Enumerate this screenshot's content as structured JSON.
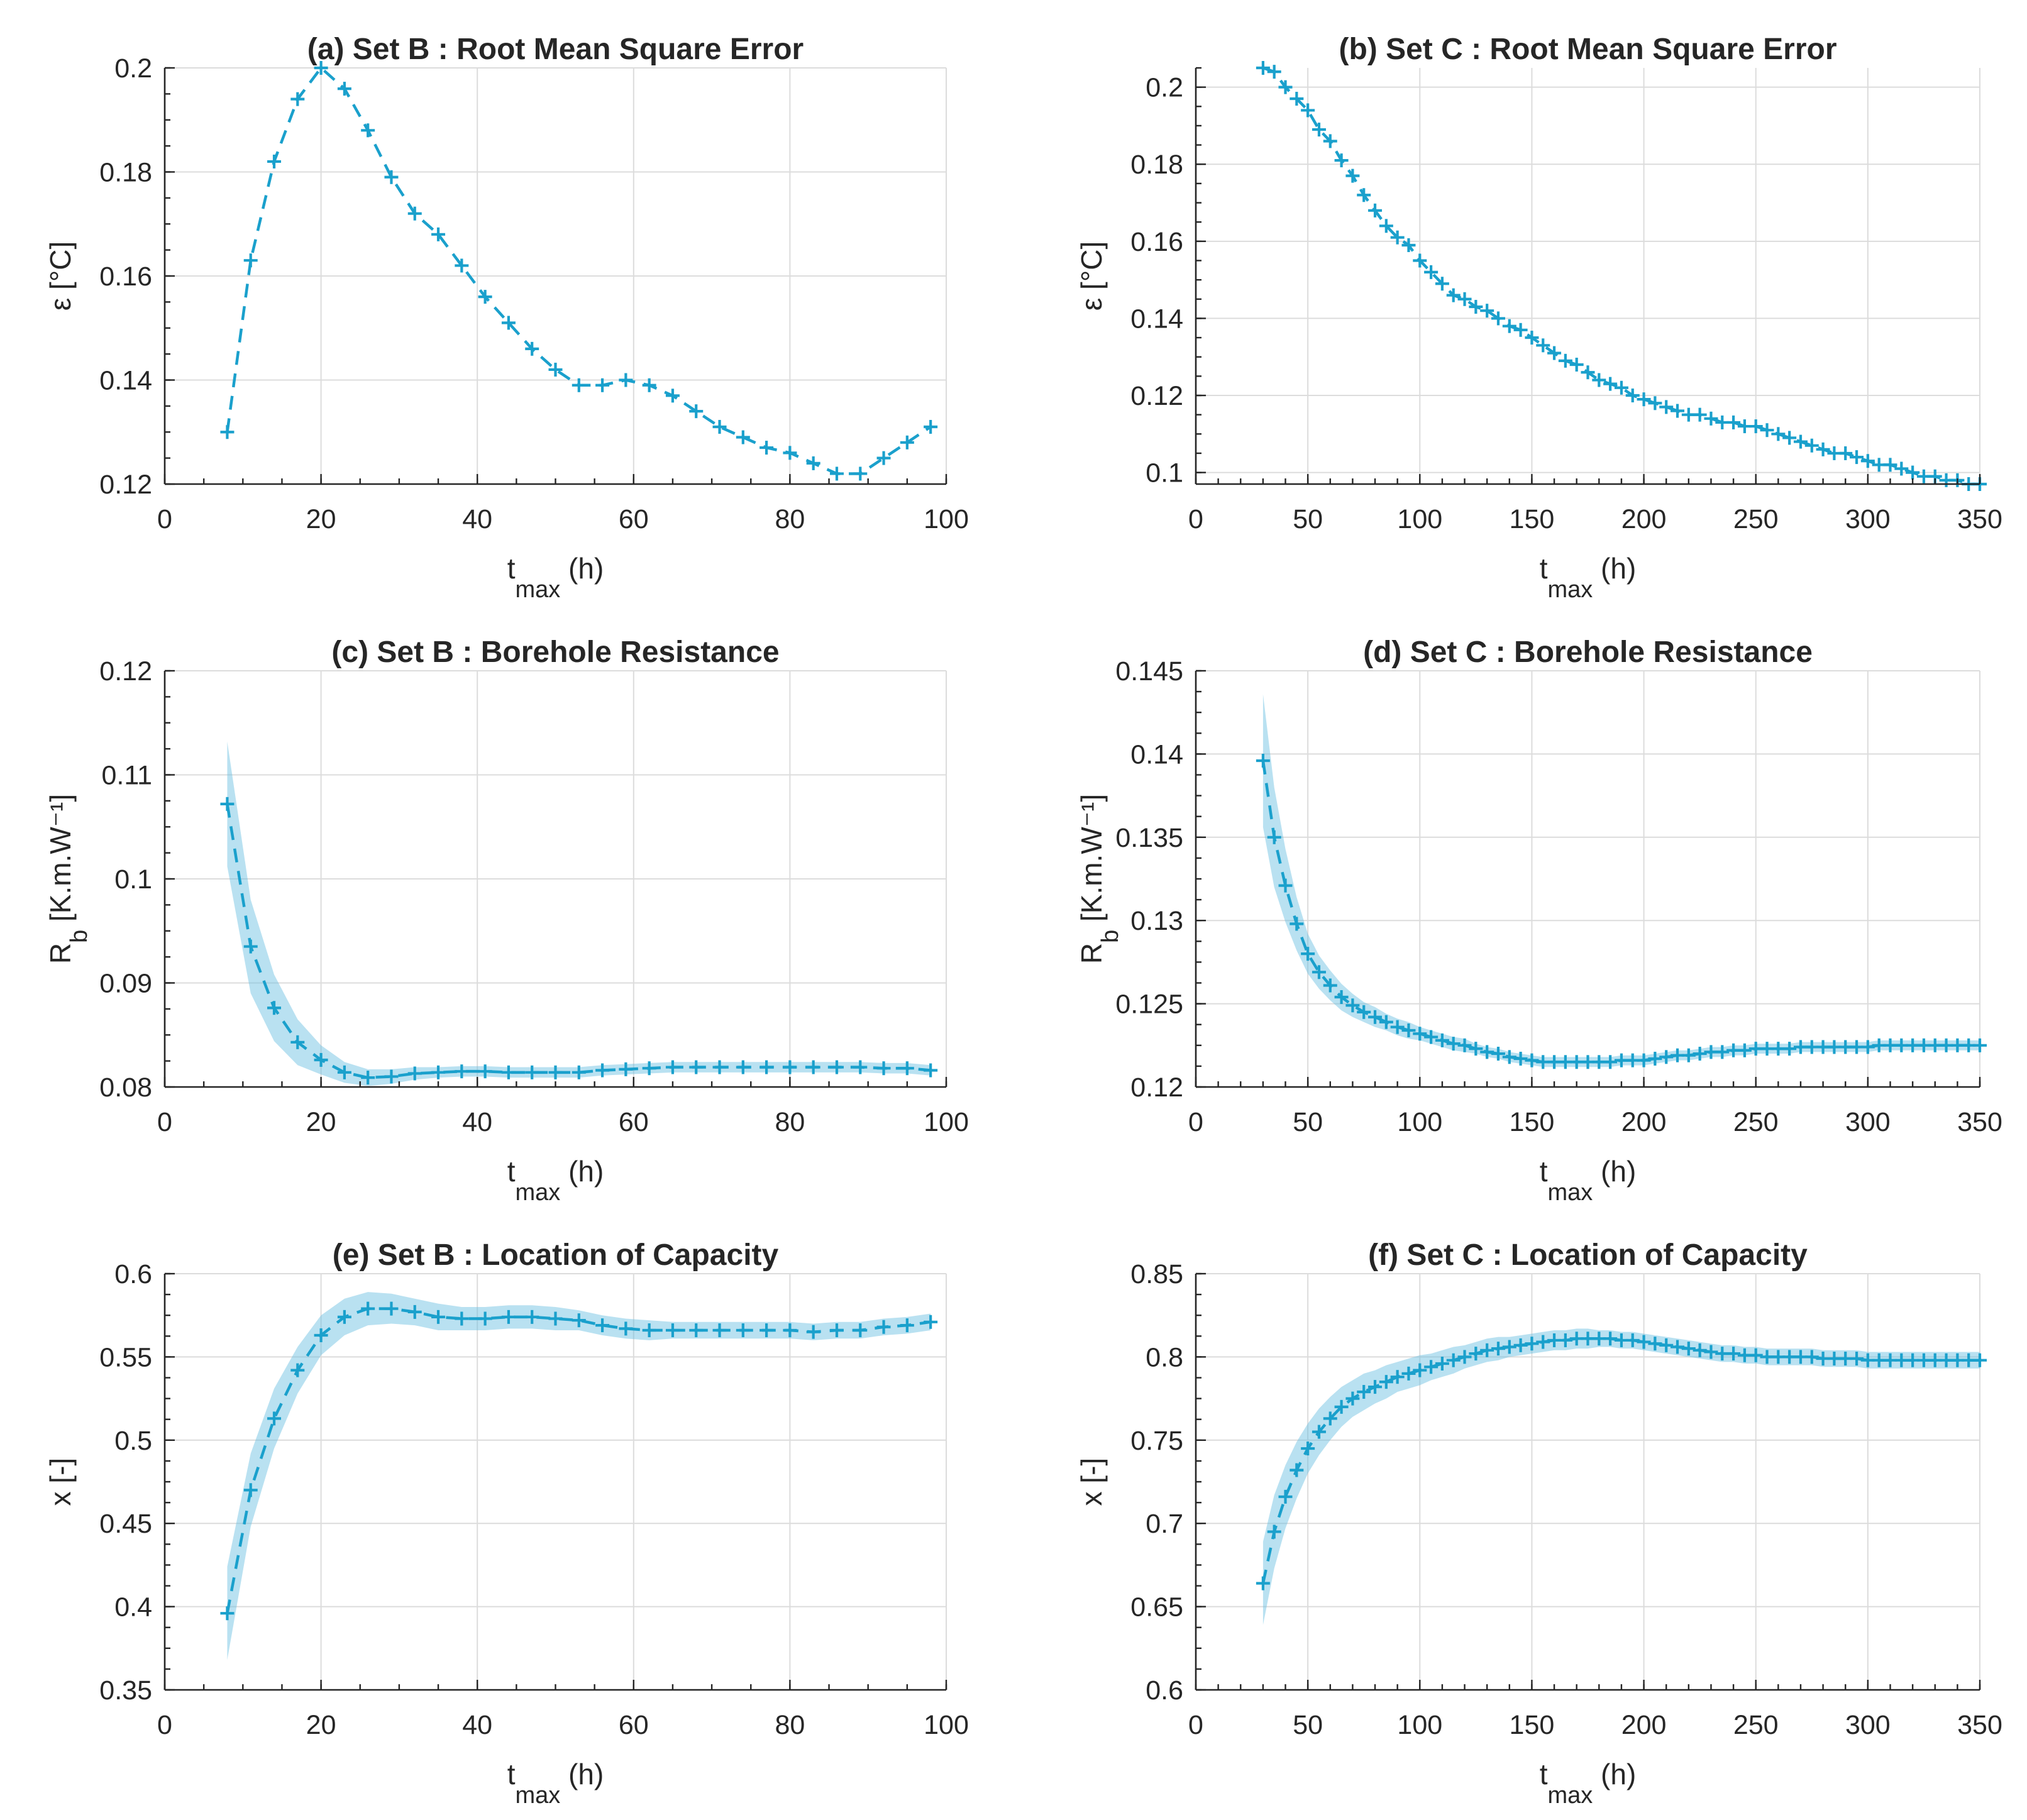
{
  "colors": {
    "series": "#1aa0cc",
    "band": "#64bde0",
    "grid": "#dcdcdc",
    "axis": "#262626"
  },
  "chart_data": [
    {
      "type": "line",
      "title": "(a) Set B : Root Mean Square Error",
      "xlabel": "t",
      "xlabel_sub": "max",
      "xlabel_unit": " (h)",
      "ylabel": "ε [°C]",
      "ylabel_sub": "",
      "ylabel_unit": "",
      "xlim": [
        0,
        100
      ],
      "ylim": [
        0.12,
        0.2
      ],
      "xticks": [
        0,
        20,
        40,
        60,
        80,
        100
      ],
      "xtick_labels": [
        "0",
        "20",
        "40",
        "60",
        "80",
        "100"
      ],
      "yticks": [
        0.12,
        0.14,
        0.16,
        0.18,
        0.2
      ],
      "ytick_labels": [
        "0.12",
        "0.14",
        "0.16",
        "0.18",
        "0.2"
      ],
      "x_minor_step": 5,
      "y_minor_step": 0.005,
      "grid": true,
      "band": false,
      "x": [
        8,
        11,
        14,
        17,
        20,
        23,
        26,
        29,
        32,
        35,
        38,
        41,
        44,
        47,
        50,
        53,
        56,
        59,
        62,
        65,
        68,
        71,
        74,
        77,
        80,
        83,
        86,
        89,
        92,
        95,
        98
      ],
      "y": [
        0.13,
        0.163,
        0.182,
        0.194,
        0.2,
        0.196,
        0.188,
        0.179,
        0.172,
        0.168,
        0.162,
        0.156,
        0.151,
        0.146,
        0.142,
        0.139,
        0.139,
        0.14,
        0.139,
        0.137,
        0.134,
        0.131,
        0.129,
        0.127,
        0.126,
        0.124,
        0.122,
        0.122,
        0.125,
        0.128,
        0.131
      ]
    },
    {
      "type": "line",
      "title": "(b) Set C : Root Mean Square Error",
      "xlabel": "t",
      "xlabel_sub": "max",
      "xlabel_unit": " (h)",
      "ylabel": "ε [°C]",
      "ylabel_sub": "",
      "ylabel_unit": "",
      "xlim": [
        0,
        350
      ],
      "ylim": [
        0.097,
        0.205
      ],
      "xticks": [
        0,
        50,
        100,
        150,
        200,
        250,
        300,
        350
      ],
      "xtick_labels": [
        "0",
        "50",
        "100",
        "150",
        "200",
        "250",
        "300",
        "350"
      ],
      "yticks": [
        0.1,
        0.12,
        0.14,
        0.16,
        0.18,
        0.2
      ],
      "ytick_labels": [
        "0.1",
        "0.12",
        "0.14",
        "0.16",
        "0.18",
        "0.2"
      ],
      "x_minor_step": 10,
      "y_minor_step": 0.005,
      "grid": true,
      "band": false,
      "x": [
        30,
        35,
        40,
        45,
        50,
        55,
        60,
        65,
        70,
        75,
        80,
        85,
        90,
        95,
        100,
        105,
        110,
        115,
        120,
        125,
        130,
        135,
        140,
        145,
        150,
        155,
        160,
        165,
        170,
        175,
        180,
        185,
        190,
        195,
        200,
        205,
        210,
        215,
        220,
        225,
        230,
        235,
        240,
        245,
        250,
        255,
        260,
        265,
        270,
        275,
        280,
        285,
        290,
        295,
        300,
        305,
        310,
        315,
        320,
        325,
        330,
        335,
        340,
        345,
        350
      ],
      "y": [
        0.205,
        0.204,
        0.2,
        0.197,
        0.194,
        0.189,
        0.186,
        0.181,
        0.177,
        0.172,
        0.168,
        0.164,
        0.161,
        0.159,
        0.155,
        0.152,
        0.149,
        0.146,
        0.145,
        0.143,
        0.142,
        0.14,
        0.138,
        0.137,
        0.135,
        0.133,
        0.131,
        0.129,
        0.128,
        0.126,
        0.124,
        0.123,
        0.122,
        0.12,
        0.119,
        0.118,
        0.117,
        0.116,
        0.115,
        0.115,
        0.114,
        0.113,
        0.113,
        0.112,
        0.112,
        0.111,
        0.11,
        0.109,
        0.108,
        0.107,
        0.106,
        0.105,
        0.105,
        0.104,
        0.103,
        0.102,
        0.102,
        0.101,
        0.1,
        0.099,
        0.099,
        0.098,
        0.098,
        0.097,
        0.097
      ]
    },
    {
      "type": "line",
      "title": "(c) Set B : Borehole Resistance",
      "xlabel": "t",
      "xlabel_sub": "max",
      "xlabel_unit": " (h)",
      "ylabel": "R",
      "ylabel_sub": "b",
      "ylabel_unit": " [K.m.W⁻¹]",
      "xlim": [
        0,
        100
      ],
      "ylim": [
        0.08,
        0.12
      ],
      "xticks": [
        0,
        20,
        40,
        60,
        80,
        100
      ],
      "xtick_labels": [
        "0",
        "20",
        "40",
        "60",
        "80",
        "100"
      ],
      "yticks": [
        0.08,
        0.09,
        0.1,
        0.11,
        0.12
      ],
      "ytick_labels": [
        "0.08",
        "0.09",
        "0.1",
        "0.11",
        "0.12"
      ],
      "x_minor_step": 5,
      "y_minor_step": 0.0025,
      "grid": true,
      "band": true,
      "x": [
        8,
        11,
        14,
        17,
        20,
        23,
        26,
        29,
        32,
        35,
        38,
        41,
        44,
        47,
        50,
        53,
        56,
        59,
        62,
        65,
        68,
        71,
        74,
        77,
        80,
        83,
        86,
        89,
        92,
        95,
        98
      ],
      "y": [
        0.1072,
        0.0935,
        0.0876,
        0.0843,
        0.0826,
        0.0814,
        0.0809,
        0.081,
        0.0813,
        0.0814,
        0.0815,
        0.0815,
        0.0814,
        0.0814,
        0.0814,
        0.0814,
        0.0816,
        0.0817,
        0.0818,
        0.0819,
        0.0819,
        0.0819,
        0.0819,
        0.0819,
        0.0819,
        0.0819,
        0.0819,
        0.0819,
        0.0818,
        0.0818,
        0.0816
      ],
      "band_half_width": [
        0.006,
        0.0045,
        0.0032,
        0.0022,
        0.0014,
        0.001,
        0.0008,
        0.0007,
        0.0006,
        0.0005,
        0.0005,
        0.0005,
        0.0005,
        0.0005,
        0.0005,
        0.0005,
        0.0005,
        0.0005,
        0.0005,
        0.0005,
        0.0005,
        0.0005,
        0.0005,
        0.0005,
        0.0005,
        0.0005,
        0.0005,
        0.0005,
        0.0005,
        0.0005,
        0.0005
      ]
    },
    {
      "type": "line",
      "title": "(d) Set C : Borehole Resistance",
      "xlabel": "t",
      "xlabel_sub": "max",
      "xlabel_unit": " (h)",
      "ylabel": "R",
      "ylabel_sub": "b",
      "ylabel_unit": " [K.m.W⁻¹]",
      "xlim": [
        0,
        350
      ],
      "ylim": [
        0.12,
        0.145
      ],
      "xticks": [
        0,
        50,
        100,
        150,
        200,
        250,
        300,
        350
      ],
      "xtick_labels": [
        "0",
        "50",
        "100",
        "150",
        "200",
        "250",
        "300",
        "350"
      ],
      "yticks": [
        0.12,
        0.125,
        0.13,
        0.135,
        0.14,
        0.145
      ],
      "ytick_labels": [
        "0.12",
        "0.125",
        "0.13",
        "0.135",
        "0.14",
        "0.145"
      ],
      "x_minor_step": 10,
      "y_minor_step": 0.00125,
      "grid": true,
      "band": true,
      "x": [
        30,
        35,
        40,
        45,
        50,
        55,
        60,
        65,
        70,
        75,
        80,
        85,
        90,
        95,
        100,
        105,
        110,
        115,
        120,
        125,
        130,
        135,
        140,
        145,
        150,
        155,
        160,
        165,
        170,
        175,
        180,
        185,
        190,
        195,
        200,
        205,
        210,
        215,
        220,
        225,
        230,
        235,
        240,
        245,
        250,
        255,
        260,
        265,
        270,
        275,
        280,
        285,
        290,
        295,
        300,
        305,
        310,
        315,
        320,
        325,
        330,
        335,
        340,
        345,
        350
      ],
      "y": [
        0.1396,
        0.135,
        0.1321,
        0.1298,
        0.128,
        0.1269,
        0.1261,
        0.1254,
        0.1249,
        0.1245,
        0.1242,
        0.1239,
        0.1236,
        0.1234,
        0.1232,
        0.123,
        0.1228,
        0.1226,
        0.1225,
        0.1223,
        0.1221,
        0.122,
        0.1218,
        0.1217,
        0.1216,
        0.1215,
        0.1215,
        0.1215,
        0.1215,
        0.1215,
        0.1215,
        0.1215,
        0.1216,
        0.1216,
        0.1216,
        0.1217,
        0.1218,
        0.1219,
        0.1219,
        0.122,
        0.1221,
        0.1221,
        0.1222,
        0.1222,
        0.1223,
        0.1223,
        0.1223,
        0.1223,
        0.1224,
        0.1224,
        0.1224,
        0.1224,
        0.1224,
        0.1224,
        0.1224,
        0.1225,
        0.1225,
        0.1225,
        0.1225,
        0.1225,
        0.1225,
        0.1225,
        0.1225,
        0.1225,
        0.1225
      ],
      "band_half_width": [
        0.004,
        0.003,
        0.0022,
        0.0016,
        0.0012,
        0.001,
        0.0009,
        0.0008,
        0.0007,
        0.0006,
        0.0006,
        0.0005,
        0.0005,
        0.0005,
        0.0004,
        0.0004,
        0.0004,
        0.0004,
        0.0004,
        0.0003,
        0.0003,
        0.0003,
        0.0003,
        0.0003,
        0.0003,
        0.0003,
        0.0003,
        0.0003,
        0.0003,
        0.0003,
        0.0003,
        0.0003,
        0.0003,
        0.0003,
        0.0003,
        0.0003,
        0.0003,
        0.0003,
        0.0003,
        0.0003,
        0.0003,
        0.0003,
        0.0003,
        0.0003,
        0.0003,
        0.0003,
        0.0003,
        0.0003,
        0.0003,
        0.0003,
        0.0003,
        0.0003,
        0.0003,
        0.0003,
        0.0003,
        0.0003,
        0.0003,
        0.0003,
        0.0003,
        0.0003,
        0.0003,
        0.0003,
        0.0003,
        0.0003,
        0.0003
      ]
    },
    {
      "type": "line",
      "title": "(e) Set B : Location of Capacity",
      "xlabel": "t",
      "xlabel_sub": "max",
      "xlabel_unit": " (h)",
      "ylabel": "x [-]",
      "ylabel_sub": "",
      "ylabel_unit": "",
      "xlim": [
        0,
        100
      ],
      "ylim": [
        0.35,
        0.6
      ],
      "xticks": [
        0,
        20,
        40,
        60,
        80,
        100
      ],
      "xtick_labels": [
        "0",
        "20",
        "40",
        "60",
        "80",
        "100"
      ],
      "yticks": [
        0.35,
        0.4,
        0.45,
        0.5,
        0.55,
        0.6
      ],
      "ytick_labels": [
        "0.35",
        "0.4",
        "0.45",
        "0.5",
        "0.55",
        "0.6"
      ],
      "x_minor_step": 5,
      "y_minor_step": 0.0125,
      "grid": true,
      "band": true,
      "x": [
        8,
        11,
        14,
        17,
        20,
        23,
        26,
        29,
        32,
        35,
        38,
        41,
        44,
        47,
        50,
        53,
        56,
        59,
        62,
        65,
        68,
        71,
        74,
        77,
        80,
        83,
        86,
        89,
        92,
        95,
        98
      ],
      "y": [
        0.396,
        0.47,
        0.513,
        0.542,
        0.563,
        0.574,
        0.579,
        0.579,
        0.577,
        0.574,
        0.573,
        0.573,
        0.574,
        0.574,
        0.573,
        0.572,
        0.569,
        0.567,
        0.566,
        0.566,
        0.566,
        0.566,
        0.566,
        0.566,
        0.566,
        0.565,
        0.566,
        0.566,
        0.568,
        0.569,
        0.571
      ],
      "band_half_width": [
        0.028,
        0.022,
        0.018,
        0.014,
        0.012,
        0.011,
        0.01,
        0.009,
        0.008,
        0.008,
        0.007,
        0.007,
        0.007,
        0.007,
        0.007,
        0.006,
        0.006,
        0.006,
        0.006,
        0.005,
        0.005,
        0.005,
        0.005,
        0.005,
        0.005,
        0.005,
        0.005,
        0.005,
        0.005,
        0.005,
        0.005
      ]
    },
    {
      "type": "line",
      "title": "(f) Set C : Location of Capacity",
      "xlabel": "t",
      "xlabel_sub": "max",
      "xlabel_unit": " (h)",
      "ylabel": "x [-]",
      "ylabel_sub": "",
      "ylabel_unit": "",
      "xlim": [
        0,
        350
      ],
      "ylim": [
        0.6,
        0.85
      ],
      "xticks": [
        0,
        50,
        100,
        150,
        200,
        250,
        300,
        350
      ],
      "xtick_labels": [
        "0",
        "50",
        "100",
        "150",
        "200",
        "250",
        "300",
        "350"
      ],
      "yticks": [
        0.6,
        0.65,
        0.7,
        0.75,
        0.8,
        0.85
      ],
      "ytick_labels": [
        "0.6",
        "0.65",
        "0.7",
        "0.75",
        "0.8",
        "0.85"
      ],
      "x_minor_step": 10,
      "y_minor_step": 0.0125,
      "grid": true,
      "band": true,
      "x": [
        30,
        35,
        40,
        45,
        50,
        55,
        60,
        65,
        70,
        75,
        80,
        85,
        90,
        95,
        100,
        105,
        110,
        115,
        120,
        125,
        130,
        135,
        140,
        145,
        150,
        155,
        160,
        165,
        170,
        175,
        180,
        185,
        190,
        195,
        200,
        205,
        210,
        215,
        220,
        225,
        230,
        235,
        240,
        245,
        250,
        255,
        260,
        265,
        270,
        275,
        280,
        285,
        290,
        295,
        300,
        305,
        310,
        315,
        320,
        325,
        330,
        335,
        340,
        345,
        350
      ],
      "y": [
        0.664,
        0.695,
        0.716,
        0.732,
        0.745,
        0.755,
        0.763,
        0.77,
        0.775,
        0.779,
        0.782,
        0.785,
        0.788,
        0.79,
        0.792,
        0.794,
        0.796,
        0.798,
        0.8,
        0.802,
        0.804,
        0.805,
        0.806,
        0.807,
        0.808,
        0.809,
        0.81,
        0.81,
        0.811,
        0.811,
        0.811,
        0.811,
        0.81,
        0.81,
        0.809,
        0.808,
        0.807,
        0.806,
        0.805,
        0.804,
        0.803,
        0.802,
        0.802,
        0.801,
        0.801,
        0.8,
        0.8,
        0.8,
        0.8,
        0.8,
        0.799,
        0.799,
        0.799,
        0.799,
        0.798,
        0.798,
        0.798,
        0.798,
        0.798,
        0.798,
        0.798,
        0.798,
        0.798,
        0.798,
        0.798
      ],
      "band_half_width": [
        0.025,
        0.022,
        0.019,
        0.017,
        0.015,
        0.014,
        0.013,
        0.012,
        0.011,
        0.011,
        0.01,
        0.01,
        0.009,
        0.009,
        0.009,
        0.008,
        0.008,
        0.008,
        0.007,
        0.007,
        0.007,
        0.007,
        0.006,
        0.006,
        0.006,
        0.006,
        0.006,
        0.006,
        0.006,
        0.006,
        0.005,
        0.005,
        0.005,
        0.005,
        0.005,
        0.005,
        0.005,
        0.005,
        0.005,
        0.005,
        0.005,
        0.005,
        0.005,
        0.005,
        0.005,
        0.005,
        0.005,
        0.005,
        0.005,
        0.005,
        0.005,
        0.005,
        0.005,
        0.005,
        0.005,
        0.005,
        0.005,
        0.005,
        0.005,
        0.005,
        0.005,
        0.005,
        0.005,
        0.005,
        0.005
      ]
    }
  ]
}
